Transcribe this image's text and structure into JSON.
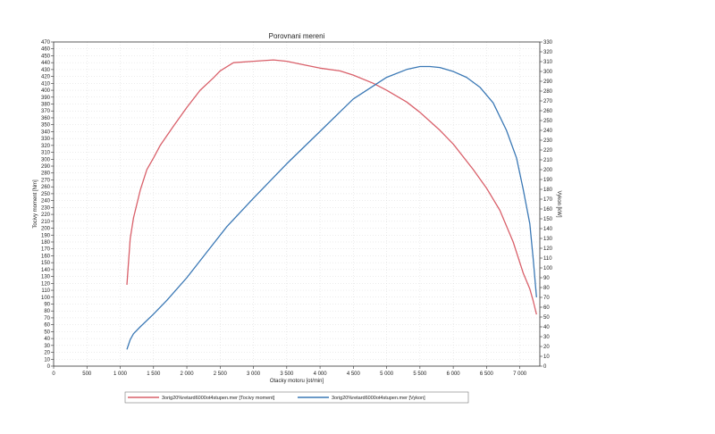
{
  "chart_data": {
    "type": "line",
    "title": "Porovnani mereni",
    "xlabel": "Otacky motoru [ot/min]",
    "ylabel_left": "Tocivy moment [Nm]",
    "ylabel_right": "Vykon [kW]",
    "xlim": [
      0,
      7300
    ],
    "ylim_left": [
      0,
      470
    ],
    "ylim_right": [
      0,
      330
    ],
    "x_ticks": [
      0,
      500,
      1000,
      1500,
      2000,
      2500,
      3000,
      3500,
      4000,
      4500,
      5000,
      5500,
      6000,
      6500,
      7000
    ],
    "x_tick_labels": [
      "0",
      "500",
      "1 000",
      "1 500",
      "2 000",
      "2 500",
      "3 000",
      "3 500",
      "4 000",
      "4 500",
      "5 000",
      "5 500",
      "6 000",
      "6 500",
      "7 000"
    ],
    "left_ticks_step": 10,
    "right_ticks_step": 10,
    "grid": true,
    "legend_position": "bottom",
    "series": [
      {
        "name": "3orig20%retard6000ot4stupen.mer  [Tocivy moment]",
        "axis": "left",
        "color": "#d9606a",
        "x": [
          1100,
          1150,
          1200,
          1300,
          1400,
          1500,
          1600,
          1800,
          2000,
          2200,
          2400,
          2500,
          2700,
          3000,
          3300,
          3500,
          3800,
          4000,
          4300,
          4500,
          4800,
          5000,
          5300,
          5500,
          5800,
          6000,
          6300,
          6500,
          6700,
          6900,
          7050,
          7150,
          7200,
          7250
        ],
        "y": [
          118,
          185,
          215,
          255,
          285,
          302,
          320,
          348,
          375,
          400,
          418,
          428,
          440,
          442,
          444,
          442,
          436,
          432,
          428,
          422,
          410,
          400,
          383,
          368,
          342,
          322,
          285,
          258,
          226,
          180,
          135,
          112,
          95,
          75
        ]
      },
      {
        "name": "3orig20%retard6000ot4stupen.mer  [Vykon]",
        "axis": "right",
        "color": "#3a78b5",
        "x": [
          1100,
          1150,
          1200,
          1300,
          1500,
          1700,
          2000,
          2300,
          2600,
          3000,
          3500,
          4000,
          4500,
          5000,
          5300,
          5500,
          5650,
          5800,
          6000,
          6200,
          6400,
          6600,
          6800,
          6950,
          7050,
          7150,
          7200,
          7250
        ],
        "y": [
          17,
          27,
          33,
          40,
          53,
          67,
          90,
          116,
          142,
          171,
          206,
          239,
          272,
          294,
          302,
          305,
          305,
          304,
          300,
          294,
          284,
          268,
          240,
          212,
          180,
          145,
          110,
          70
        ]
      }
    ]
  }
}
